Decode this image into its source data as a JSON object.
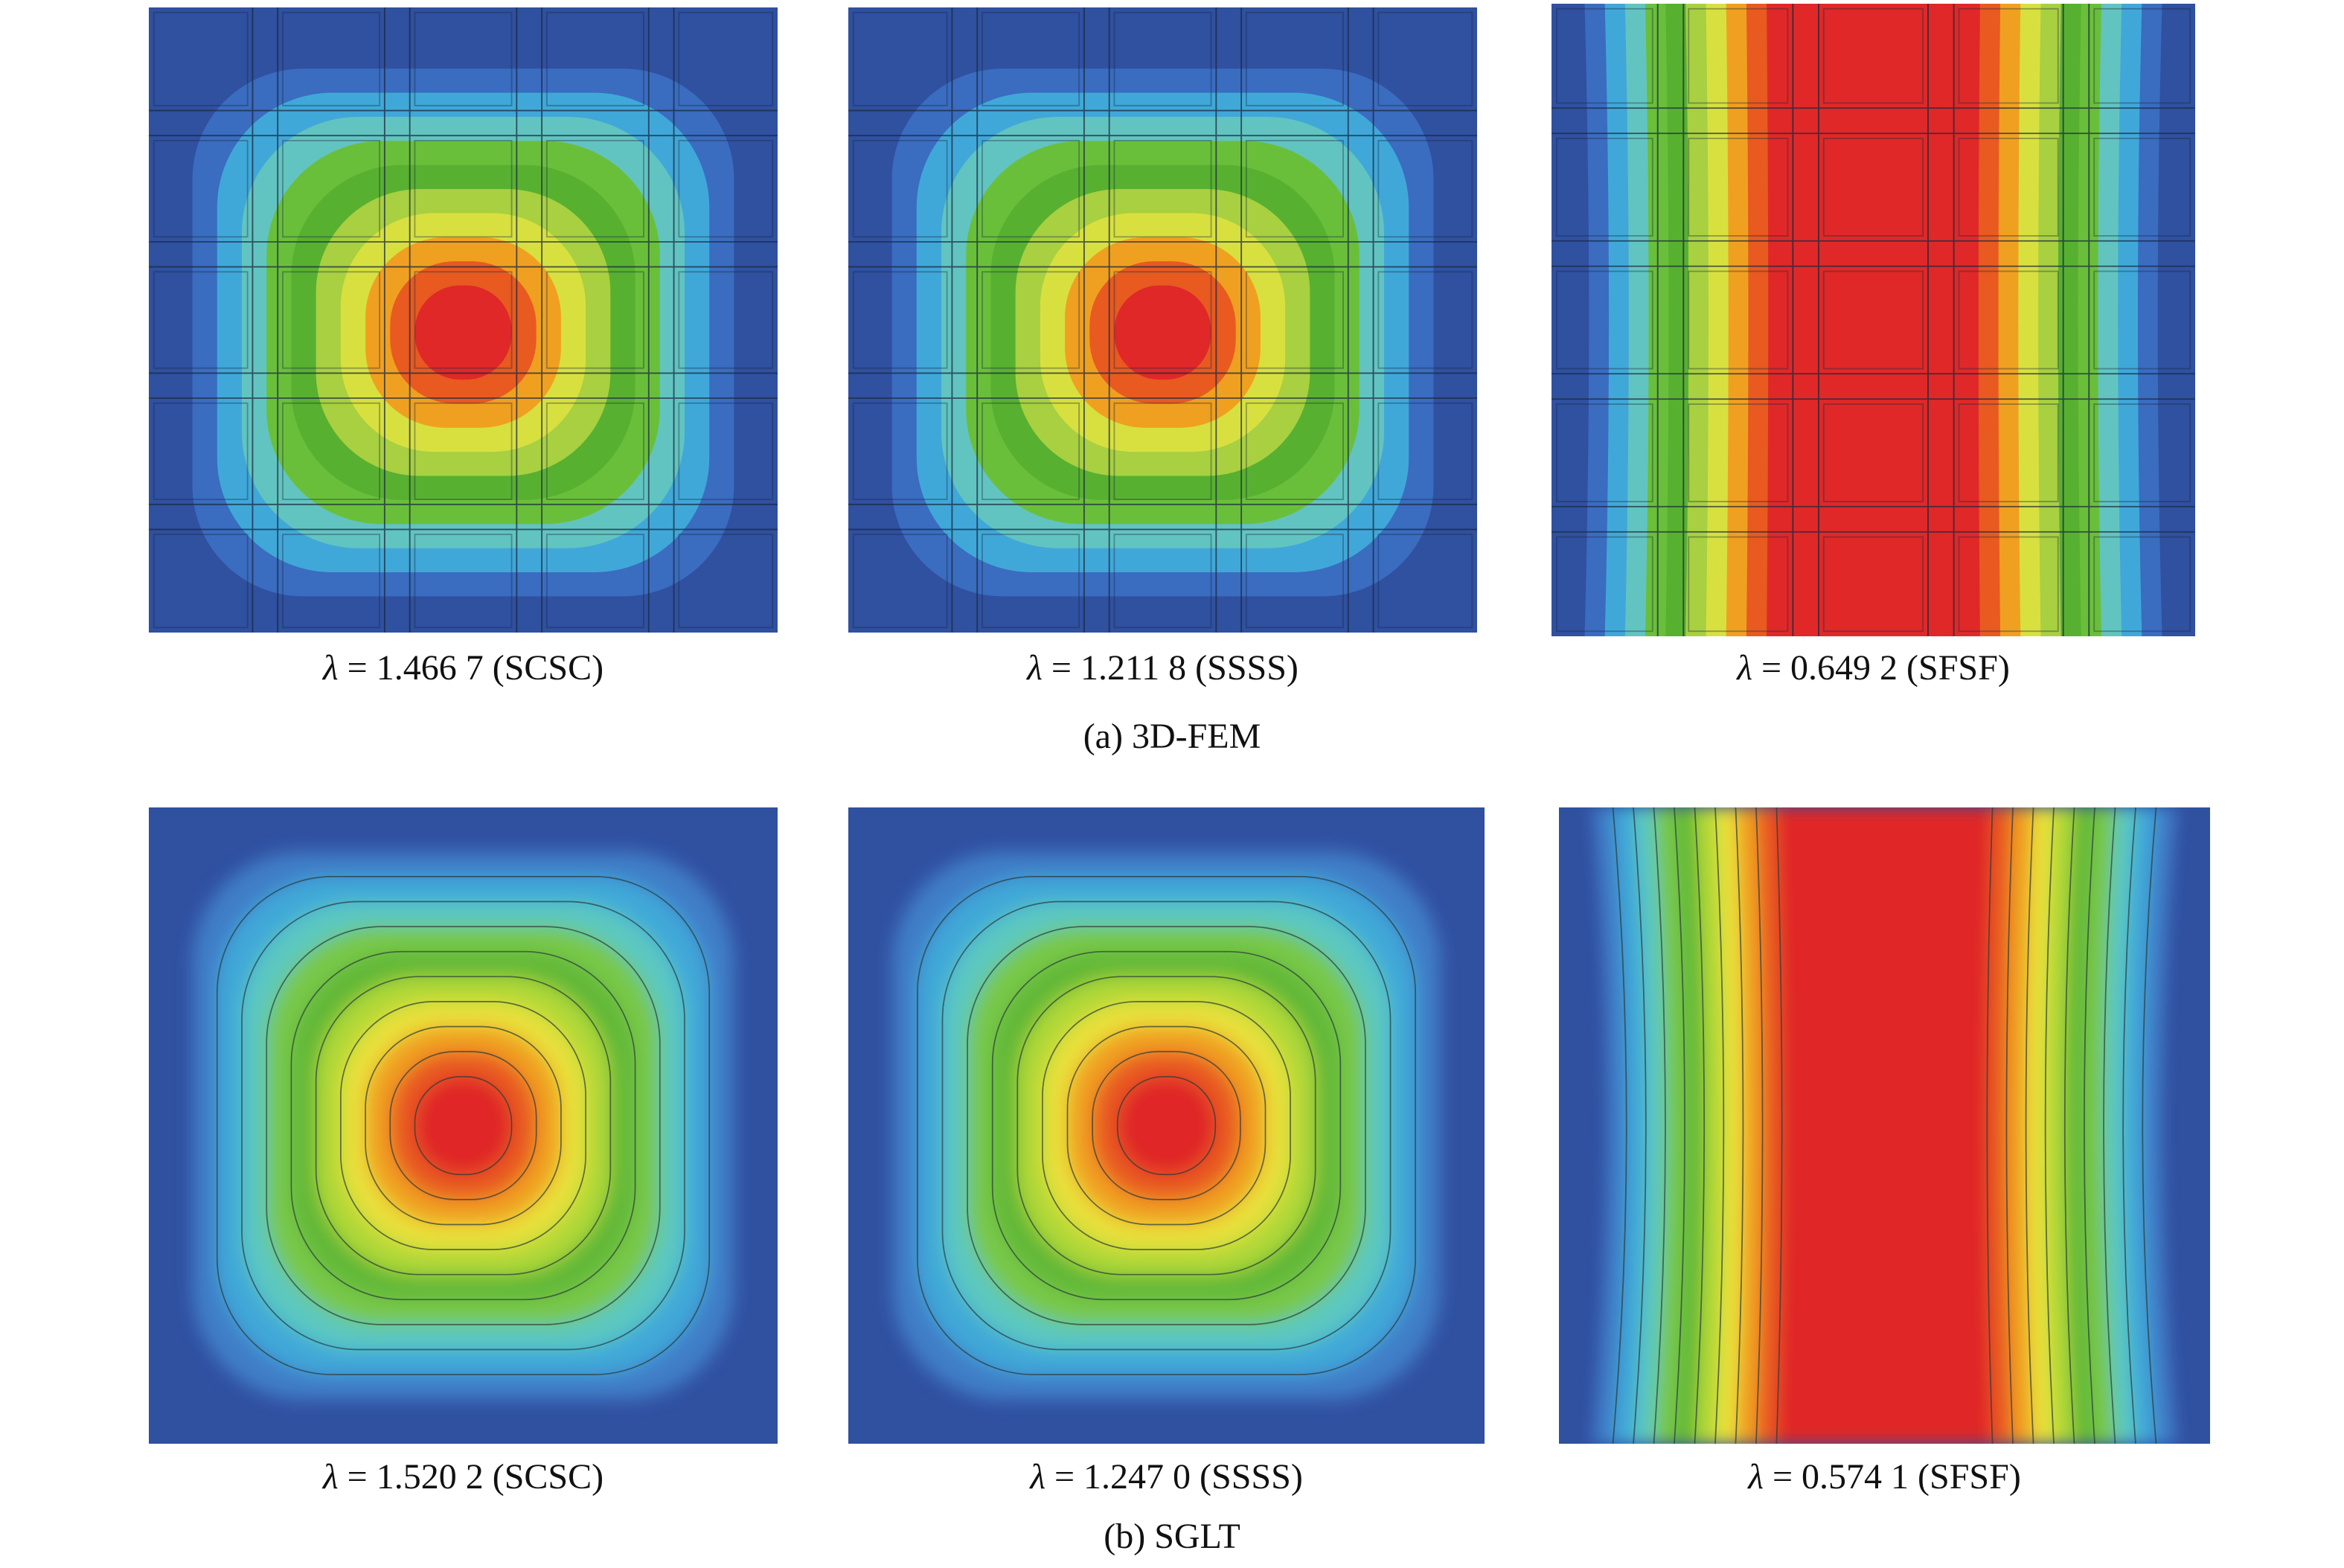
{
  "colors": {
    "blue": "#3050a0",
    "red": "#e02828",
    "green": "#6abf3a",
    "orange": "#f0a020",
    "yellow": "#d8e040",
    "cyan": "#40a8d8"
  },
  "rows": [
    {
      "label": "(a) 3D-FEM",
      "panels": [
        {
          "symbol": "λ",
          "value": "= 1.466 7 (SCSC)",
          "mode": "center",
          "meshed": true
        },
        {
          "symbol": "λ",
          "value": "= 1.211 8 (SSSS)",
          "mode": "center",
          "meshed": true
        },
        {
          "symbol": "λ",
          "value": "= 0.649 2 (SFSF)",
          "mode": "strip",
          "meshed": true
        }
      ]
    },
    {
      "label": "(b) SGLT",
      "panels": [
        {
          "symbol": "λ",
          "value": "= 1.520 2 (SCSC)",
          "mode": "center",
          "meshed": false
        },
        {
          "symbol": "λ",
          "value": "= 1.247 0 (SSSS)",
          "mode": "center",
          "meshed": false
        },
        {
          "symbol": "λ",
          "value": "= 0.574 1 (SFSF)",
          "mode": "strip",
          "meshed": false
        }
      ]
    }
  ]
}
